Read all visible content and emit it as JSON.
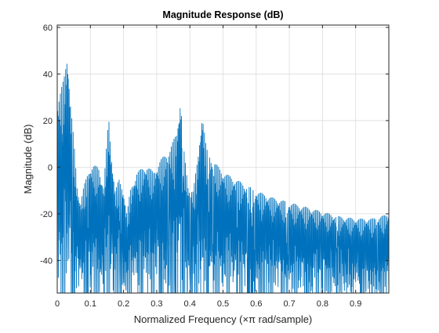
{
  "chart_data": {
    "type": "line",
    "title": "Magnitude Response (dB)",
    "xlabel": "Normalized Frequency (×π rad/sample)",
    "ylabel": "Magnitude (dB)",
    "xlim": [
      0,
      1
    ],
    "ylim": [
      -54,
      61
    ],
    "grid": true,
    "x_ticks": [
      0,
      0.1,
      0.2,
      0.3,
      0.4,
      0.5,
      0.6,
      0.7,
      0.8,
      0.9
    ],
    "x_tick_labels": [
      "0",
      "0.1",
      "0.2",
      "0.3",
      "0.4",
      "0.5",
      "0.6",
      "0.7",
      "0.8",
      "0.9"
    ],
    "y_ticks": [
      -40,
      -20,
      0,
      20,
      40,
      60
    ],
    "y_tick_labels": [
      "-40",
      "-20",
      "0",
      "20",
      "40",
      "60"
    ],
    "line_color": "#0072BD",
    "envelope_peaks": [
      {
        "x": 0.0,
        "y": 28
      },
      {
        "x": 0.01,
        "y": 33
      },
      {
        "x": 0.02,
        "y": 38
      },
      {
        "x": 0.031,
        "y": 50
      },
      {
        "x": 0.04,
        "y": 28
      },
      {
        "x": 0.05,
        "y": 12
      },
      {
        "x": 0.06,
        "y": -8
      },
      {
        "x": 0.07,
        "y": -15
      },
      {
        "x": 0.08,
        "y": -8
      },
      {
        "x": 0.098,
        "y": 0
      },
      {
        "x": 0.11,
        "y": 1
      },
      {
        "x": 0.125,
        "y": 0
      },
      {
        "x": 0.14,
        "y": -8
      },
      {
        "x": 0.155,
        "y": 22
      },
      {
        "x": 0.165,
        "y": 3
      },
      {
        "x": 0.175,
        "y": -10
      },
      {
        "x": 0.186,
        "y": -5
      },
      {
        "x": 0.2,
        "y": -10
      },
      {
        "x": 0.21,
        "y": -20
      },
      {
        "x": 0.22,
        "y": -10
      },
      {
        "x": 0.24,
        "y": -2
      },
      {
        "x": 0.27,
        "y": 1
      },
      {
        "x": 0.29,
        "y": -2
      },
      {
        "x": 0.31,
        "y": 3
      },
      {
        "x": 0.34,
        "y": 8
      },
      {
        "x": 0.36,
        "y": 15
      },
      {
        "x": 0.372,
        "y": 30
      },
      {
        "x": 0.38,
        "y": 10
      },
      {
        "x": 0.395,
        "y": -8
      },
      {
        "x": 0.41,
        "y": -10
      },
      {
        "x": 0.425,
        "y": 5
      },
      {
        "x": 0.437,
        "y": 24
      },
      {
        "x": 0.45,
        "y": 8
      },
      {
        "x": 0.47,
        "y": 3
      },
      {
        "x": 0.5,
        "y": -2
      },
      {
        "x": 0.55,
        "y": -6
      },
      {
        "x": 0.6,
        "y": -10
      },
      {
        "x": 0.65,
        "y": -13
      },
      {
        "x": 0.7,
        "y": -15
      },
      {
        "x": 0.75,
        "y": -17
      },
      {
        "x": 0.8,
        "y": -19
      },
      {
        "x": 0.85,
        "y": -21
      },
      {
        "x": 0.9,
        "y": -22
      },
      {
        "x": 0.95,
        "y": -22
      },
      {
        "x": 1.0,
        "y": -20
      }
    ],
    "lobe_floor_db": -54
  }
}
